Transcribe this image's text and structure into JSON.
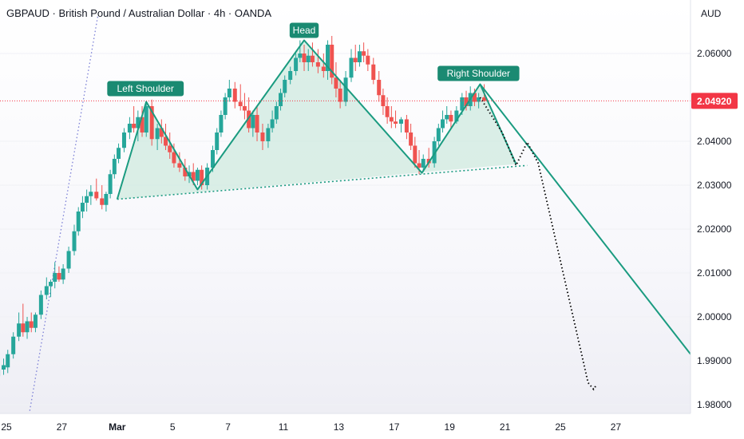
{
  "title": "GBPAUD · British Pound / Australian Dollar · 4h · OANDA",
  "currency": "AUD",
  "colors": {
    "up": "#26a69a",
    "down": "#ef5350",
    "pattern": "#1a9b80",
    "pattern_fill": "#cfe9df",
    "price_tag": "#f23645",
    "label_bg": "#1a8a72",
    "trend": "#7b7fd6",
    "projection": "#111111"
  },
  "chart_data": {
    "type": "candlestick",
    "title": "GBPAUD · British Pound / Australian Dollar · 4h · OANDA",
    "ylim": [
      1.977,
      2.0685
    ],
    "y_ticks": [
      2.06,
      2.04,
      2.03,
      2.02,
      2.01,
      2.0,
      1.99,
      1.98
    ],
    "y_tick_labels": [
      "2.06000",
      "2.04000",
      "2.03000",
      "2.02000",
      "2.01000",
      "2.00000",
      "1.99000",
      "1.98000"
    ],
    "current_price": 2.0492,
    "current_price_label": "2.04920",
    "x_ticks": [
      {
        "t": 0,
        "label": "25"
      },
      {
        "t": 2,
        "label": "27"
      },
      {
        "t": 4,
        "label": "Mar"
      },
      {
        "t": 6,
        "label": "5"
      },
      {
        "t": 8,
        "label": "7"
      },
      {
        "t": 10,
        "label": "11"
      },
      {
        "t": 12,
        "label": "13"
      },
      {
        "t": 14,
        "label": "17"
      },
      {
        "t": 16,
        "label": "19"
      },
      {
        "t": 18,
        "label": "21"
      },
      {
        "t": 20,
        "label": "25"
      },
      {
        "t": 22,
        "label": "27"
      }
    ],
    "candles_note": "t in trading days from Feb 25; o,h,l,c in AUD",
    "candles": [
      [
        -0.3,
        1.9865,
        1.9895,
        1.985,
        1.988
      ],
      [
        -0.1,
        1.988,
        1.9905,
        1.9868,
        1.989
      ],
      [
        0.05,
        1.9885,
        1.9925,
        1.9872,
        1.9915
      ],
      [
        0.25,
        1.9915,
        1.9965,
        1.9905,
        1.9955
      ],
      [
        0.45,
        1.9955,
        2.001,
        1.9945,
        1.9985
      ],
      [
        0.6,
        1.9985,
        2.003,
        1.9955,
        1.9965
      ],
      [
        0.75,
        1.9965,
        2.0,
        1.995,
        1.999
      ],
      [
        0.9,
        1.999,
        2.001,
        1.9965,
        1.9975
      ],
      [
        1.05,
        1.9975,
        2.001,
        1.9965,
        2.0005
      ],
      [
        1.25,
        2.0005,
        2.006,
        1.9995,
        2.005
      ],
      [
        1.45,
        2.005,
        2.009,
        2.004,
        2.007
      ],
      [
        1.6,
        2.007,
        2.0085,
        2.0045,
        2.008
      ],
      [
        1.75,
        2.008,
        2.0125,
        2.0065,
        2.01
      ],
      [
        1.9,
        2.01,
        2.0115,
        2.008,
        2.0085
      ],
      [
        2.05,
        2.0085,
        2.012,
        2.0075,
        2.011
      ],
      [
        2.25,
        2.011,
        2.016,
        2.01,
        2.015
      ],
      [
        2.45,
        2.015,
        2.021,
        2.014,
        2.0195
      ],
      [
        2.6,
        2.0195,
        2.025,
        2.0185,
        2.024
      ],
      [
        2.75,
        2.024,
        2.0275,
        2.0225,
        2.026
      ],
      [
        2.9,
        2.026,
        2.029,
        2.024,
        2.0275
      ],
      [
        3.05,
        2.0275,
        2.03,
        2.0255,
        2.0285
      ],
      [
        3.25,
        2.0285,
        2.0315,
        2.0265,
        2.027
      ],
      [
        3.45,
        2.027,
        2.03,
        2.0245,
        2.0255
      ],
      [
        3.6,
        2.0255,
        2.0285,
        2.024,
        2.028
      ],
      [
        3.75,
        2.028,
        2.0335,
        2.027,
        2.0325
      ],
      [
        3.9,
        2.0325,
        2.037,
        2.0315,
        2.036
      ],
      [
        4.05,
        2.036,
        2.0395,
        2.035,
        2.0385
      ],
      [
        4.25,
        2.0385,
        2.043,
        2.0375,
        2.042
      ],
      [
        4.45,
        2.042,
        2.0455,
        2.0405,
        2.044
      ],
      [
        4.6,
        2.044,
        2.048,
        2.042,
        2.043
      ],
      [
        4.75,
        2.043,
        2.047,
        2.04,
        2.0455
      ],
      [
        4.9,
        2.0455,
        2.048,
        2.041,
        2.042
      ],
      [
        5.05,
        2.042,
        2.049,
        2.041,
        2.048
      ],
      [
        5.25,
        2.048,
        2.0495,
        2.039,
        2.0405
      ],
      [
        5.45,
        2.0405,
        2.044,
        2.038,
        2.043
      ],
      [
        5.6,
        2.043,
        2.045,
        2.0395,
        2.041
      ],
      [
        5.75,
        2.041,
        2.044,
        2.038,
        2.039
      ],
      [
        5.9,
        2.039,
        2.042,
        2.036,
        2.0375
      ],
      [
        6.05,
        2.0375,
        2.0395,
        2.034,
        2.035
      ],
      [
        6.25,
        2.035,
        2.0375,
        2.033,
        2.034
      ],
      [
        6.45,
        2.034,
        2.036,
        2.031,
        2.032
      ],
      [
        6.6,
        2.032,
        2.0345,
        2.0305,
        2.033
      ],
      [
        6.75,
        2.033,
        2.035,
        2.03,
        2.031
      ],
      [
        6.9,
        2.031,
        2.034,
        2.03,
        2.0335
      ],
      [
        7.05,
        2.0335,
        2.0345,
        2.029,
        2.03
      ],
      [
        7.25,
        2.03,
        2.035,
        2.029,
        2.034
      ],
      [
        7.45,
        2.034,
        2.039,
        2.033,
        2.038
      ],
      [
        7.6,
        2.038,
        2.043,
        2.037,
        2.042
      ],
      [
        7.75,
        2.042,
        2.047,
        2.041,
        2.046
      ],
      [
        7.9,
        2.046,
        2.051,
        2.045,
        2.05
      ],
      [
        8.05,
        2.05,
        2.054,
        2.049,
        2.052
      ],
      [
        8.25,
        2.052,
        2.0535,
        2.0475,
        2.049
      ],
      [
        8.45,
        2.049,
        2.053,
        2.047,
        2.048
      ],
      [
        8.6,
        2.048,
        2.051,
        2.045,
        2.047
      ],
      [
        8.75,
        2.047,
        2.05,
        2.042,
        2.043
      ],
      [
        8.9,
        2.043,
        2.047,
        2.041,
        2.046
      ],
      [
        9.05,
        2.046,
        2.048,
        2.04,
        2.042
      ],
      [
        9.25,
        2.042,
        2.044,
        2.038,
        2.04
      ],
      [
        9.45,
        2.04,
        2.044,
        2.0385,
        2.043
      ],
      [
        9.6,
        2.043,
        2.047,
        2.042,
        2.045
      ],
      [
        9.75,
        2.045,
        2.049,
        2.044,
        2.048
      ],
      [
        9.9,
        2.048,
        2.052,
        2.047,
        2.051
      ],
      [
        10.05,
        2.051,
        2.055,
        2.05,
        2.054
      ],
      [
        10.25,
        2.054,
        2.057,
        2.053,
        2.056
      ],
      [
        10.45,
        2.056,
        2.06,
        2.055,
        2.059
      ],
      [
        10.6,
        2.059,
        2.063,
        2.058,
        2.06
      ],
      [
        10.75,
        2.06,
        2.062,
        2.056,
        2.058
      ],
      [
        10.9,
        2.058,
        2.061,
        2.056,
        2.0595
      ],
      [
        11.05,
        2.0595,
        2.0625,
        2.057,
        2.058
      ],
      [
        11.25,
        2.058,
        2.061,
        2.0555,
        2.057
      ],
      [
        11.45,
        2.057,
        2.06,
        2.0545,
        2.056
      ],
      [
        11.6,
        2.056,
        2.063,
        2.054,
        2.062
      ],
      [
        11.75,
        2.062,
        2.064,
        2.053,
        2.0545
      ],
      [
        11.9,
        2.0545,
        2.058,
        2.05,
        2.052
      ],
      [
        12.05,
        2.052,
        2.054,
        2.0475,
        2.049
      ],
      [
        12.25,
        2.049,
        2.056,
        2.048,
        2.0545
      ],
      [
        12.45,
        2.0545,
        2.061,
        2.0535,
        2.059
      ],
      [
        12.6,
        2.059,
        2.062,
        2.056,
        2.058
      ],
      [
        12.75,
        2.058,
        2.062,
        2.057,
        2.0605
      ],
      [
        12.9,
        2.0605,
        2.0625,
        2.058,
        2.0595
      ],
      [
        13.05,
        2.0595,
        2.061,
        2.056,
        2.0575
      ],
      [
        13.25,
        2.0575,
        2.059,
        2.053,
        2.054
      ],
      [
        13.45,
        2.054,
        2.056,
        2.049,
        2.0505
      ],
      [
        13.6,
        2.0505,
        2.052,
        2.046,
        2.048
      ],
      [
        13.75,
        2.048,
        2.05,
        2.044,
        2.0455
      ],
      [
        13.9,
        2.0455,
        2.048,
        2.043,
        2.0445
      ],
      [
        14.05,
        2.0445,
        2.047,
        2.043,
        2.044
      ],
      [
        14.25,
        2.044,
        2.0455,
        2.042,
        2.045
      ],
      [
        14.45,
        2.045,
        2.046,
        2.0405,
        2.042
      ],
      [
        14.6,
        2.042,
        2.044,
        2.038,
        2.039
      ],
      [
        14.75,
        2.039,
        2.041,
        2.034,
        2.035
      ],
      [
        14.9,
        2.035,
        2.038,
        2.0325,
        2.034
      ],
      [
        15.05,
        2.034,
        2.037,
        2.033,
        2.036
      ],
      [
        15.25,
        2.036,
        2.0385,
        2.034,
        2.035
      ],
      [
        15.45,
        2.035,
        2.041,
        2.034,
        2.04
      ],
      [
        15.6,
        2.04,
        2.044,
        2.039,
        2.043
      ],
      [
        15.75,
        2.043,
        2.047,
        2.042,
        2.045
      ],
      [
        15.9,
        2.045,
        2.048,
        2.044,
        2.046
      ],
      [
        16.05,
        2.046,
        2.047,
        2.043,
        2.0445
      ],
      [
        16.25,
        2.0445,
        2.048,
        2.044,
        2.047
      ],
      [
        16.45,
        2.047,
        2.051,
        2.046,
        2.05
      ],
      [
        16.6,
        2.05,
        2.0515,
        2.047,
        2.048
      ],
      [
        16.75,
        2.048,
        2.0525,
        2.047,
        2.051
      ],
      [
        16.9,
        2.051,
        2.052,
        2.048,
        2.049
      ],
      [
        17.05,
        2.049,
        2.051,
        2.0475,
        2.05
      ],
      [
        17.25,
        2.05,
        2.053,
        2.049,
        2.0492
      ]
    ]
  },
  "pattern": {
    "labels": {
      "left": "Left Shoulder",
      "head": "Head",
      "right": "Right Shoulder"
    },
    "points": [
      [
        4.0,
        2.0268
      ],
      [
        5.05,
        2.049
      ],
      [
        6.9,
        2.029
      ],
      [
        10.75,
        2.063
      ],
      [
        15.0,
        2.0328
      ],
      [
        17.1,
        2.053
      ],
      [
        18.4,
        2.0348
      ]
    ],
    "neckline": [
      [
        4.0,
        2.0268
      ],
      [
        18.8,
        2.0345
      ]
    ],
    "target_line": [
      [
        17.1,
        2.053
      ],
      [
        24.7,
        1.9915
      ]
    ],
    "trend_line": [
      [
        0.8,
        1.977
      ],
      [
        3.3,
        2.0685
      ]
    ],
    "projection": [
      [
        17.1,
        2.05
      ],
      [
        17.9,
        2.042
      ],
      [
        18.4,
        2.0345
      ],
      [
        18.8,
        2.0398
      ],
      [
        19.2,
        2.035
      ],
      [
        21.0,
        1.985
      ],
      [
        21.2,
        1.9835
      ],
      [
        21.3,
        1.9845
      ]
    ]
  }
}
